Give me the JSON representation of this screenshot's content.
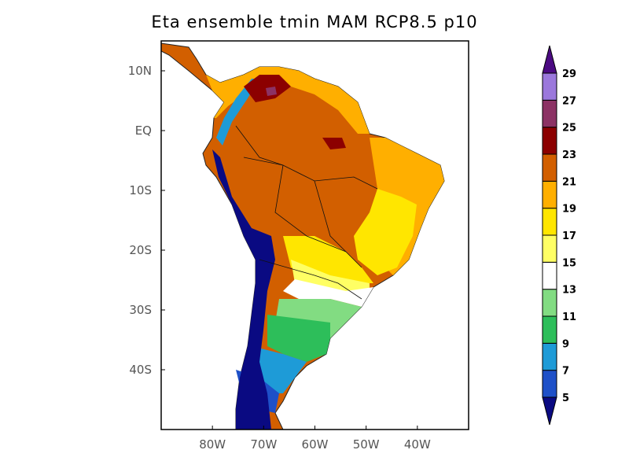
{
  "title": "Eta ensemble tmin MAM RCP8.5 p10",
  "map": {
    "projection": "lat-lon",
    "lon_range": [
      -90,
      -30
    ],
    "lat_range": [
      -50,
      15
    ],
    "lat_ticks": [
      {
        "value": 10,
        "label": "10N"
      },
      {
        "value": 0,
        "label": "EQ"
      },
      {
        "value": -10,
        "label": "10S"
      },
      {
        "value": -20,
        "label": "20S"
      },
      {
        "value": -30,
        "label": "30S"
      },
      {
        "value": -40,
        "label": "40S"
      }
    ],
    "lon_ticks": [
      {
        "value": -80,
        "label": "80W"
      },
      {
        "value": -70,
        "label": "70W"
      },
      {
        "value": -60,
        "label": "60W"
      },
      {
        "value": -50,
        "label": "50W"
      },
      {
        "value": -40,
        "label": "40W"
      }
    ]
  },
  "colorbar": {
    "levels": [
      "5",
      "7",
      "9",
      "11",
      "13",
      "15",
      "17",
      "19",
      "21",
      "23",
      "25",
      "27",
      "29"
    ],
    "below_color": "#0a0a82",
    "above_color": "#4b0a82",
    "colors": [
      "#1e50c8",
      "#1e9bd7",
      "#2dbe5a",
      "#82dc82",
      "#ffffff",
      "#ffff64",
      "#ffe600",
      "#ffaf00",
      "#d25f00",
      "#8c0000",
      "#8c3264",
      "#9b78dc"
    ]
  }
}
